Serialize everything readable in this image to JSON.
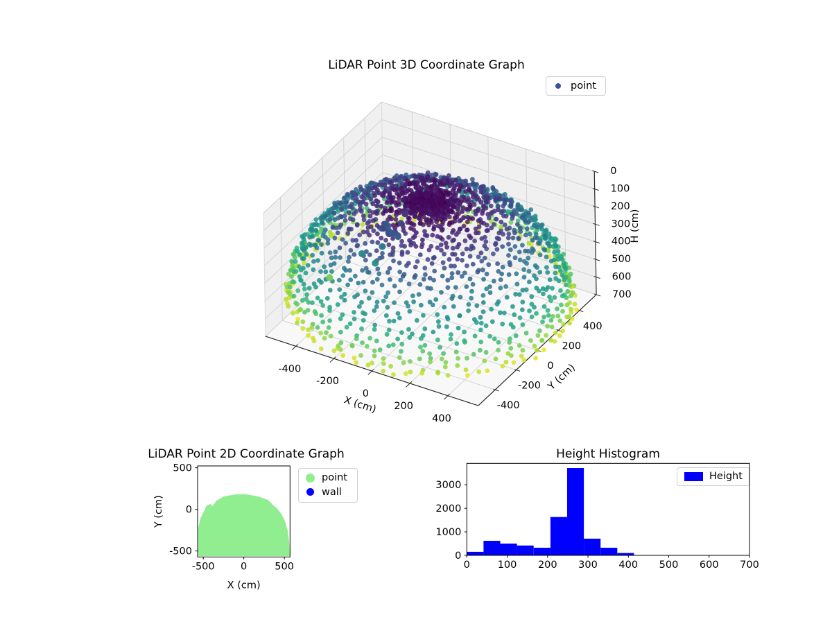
{
  "figure": {
    "background": "#ffffff"
  },
  "chart_data": [
    {
      "type": "scatter3d",
      "title": "LiDAR Point 3D Coordinate Graph",
      "xlabel": "X (cm)",
      "ylabel": "Y (cm)",
      "zlabel": "H (cm)",
      "x_ticks": [
        -400,
        -200,
        0,
        200,
        400
      ],
      "y_ticks": [
        -400,
        -200,
        0,
        200,
        400
      ],
      "z_ticks": [
        0,
        100,
        200,
        300,
        400,
        500,
        600,
        700
      ],
      "xlim": [
        -560,
        560
      ],
      "ylim": [
        -560,
        560
      ],
      "zlim": [
        0,
        700
      ],
      "z_axis_inverted": true,
      "legend": [
        {
          "label": "point",
          "color": "#3b529c"
        }
      ],
      "colormap": "viridis",
      "colors": {
        "pane_wall": "#f0f0f0",
        "pane_floor": "#f8f8f8",
        "grid": "#d0d0d0",
        "axis": "#2a2a2a"
      },
      "points": {
        "kind": "hemisphere-dome",
        "radius_xy": 660,
        "radius_h": 570,
        "h_base": 625,
        "phi_deg": {
          "start": 2,
          "end": 86,
          "step": 3
        },
        "azimuth_count": 64,
        "jitter_xy": 14,
        "jitter_h": 14,
        "cap_extra": 170,
        "dropout": 0.05,
        "seed": 7,
        "marker_px": 3.4,
        "opacity": 0.85,
        "color_by": "H",
        "color_domain": [
          40,
          640
        ]
      },
      "outliers": {
        "cluster": {
          "x": [
            -180,
            -80
          ],
          "y": [
            -200,
            -90
          ],
          "h": [
            150,
            230
          ],
          "count": 12,
          "marker_px": 4.8
        },
        "singles": [
          [
            -40,
            60,
            60
          ],
          [
            -100,
            -50,
            130
          ],
          [
            -230,
            -230,
            300
          ],
          [
            -150,
            -180,
            260
          ],
          [
            -160,
            -230,
            330
          ],
          [
            -420,
            -200,
            520
          ]
        ],
        "marker_px": 5
      }
    },
    {
      "type": "scatter",
      "title": "LiDAR Point 2D Coordinate Graph",
      "xlabel": "X (cm)",
      "ylabel": "Y (cm)",
      "x_ticks": [
        -500,
        0,
        500
      ],
      "y_ticks": [
        500,
        0,
        -500
      ],
      "xlim": [
        -570,
        570
      ],
      "ylim": [
        -572,
        522
      ],
      "legend": [
        {
          "label": "point",
          "color": "#90ee90"
        },
        {
          "label": "wall",
          "color": "#0000ff"
        }
      ],
      "blob": {
        "color": "#90ee90",
        "outline": [
          [
            -553,
            -553
          ],
          [
            -553,
            -228
          ],
          [
            -527,
            -111
          ],
          [
            -484,
            -28
          ],
          [
            -459,
            30
          ],
          [
            -416,
            55
          ],
          [
            -382,
            30
          ],
          [
            -331,
            97
          ],
          [
            -245,
            147
          ],
          [
            -100,
            172
          ],
          [
            28,
            172
          ],
          [
            174,
            147
          ],
          [
            294,
            105
          ],
          [
            354,
            47
          ],
          [
            405,
            5
          ],
          [
            457,
            -61
          ],
          [
            500,
            -144
          ],
          [
            534,
            -261
          ],
          [
            551,
            -395
          ],
          [
            560,
            -553
          ]
        ]
      }
    },
    {
      "type": "bar",
      "title": "Height Histogram",
      "legend": [
        {
          "label": "Height",
          "color": "#0000ff"
        }
      ],
      "bar_color": "#0000ff",
      "bins": {
        "start": 0,
        "width": 41.4
      },
      "values": [
        150,
        620,
        500,
        420,
        325,
        1630,
        3715,
        710,
        325,
        100
      ],
      "x_ticks": [
        0,
        100,
        200,
        300,
        400,
        500,
        600,
        700
      ],
      "y_ticks": [
        0,
        1000,
        2000,
        3000
      ],
      "xlim": [
        0,
        700
      ],
      "ylim": [
        0,
        3912
      ]
    }
  ]
}
